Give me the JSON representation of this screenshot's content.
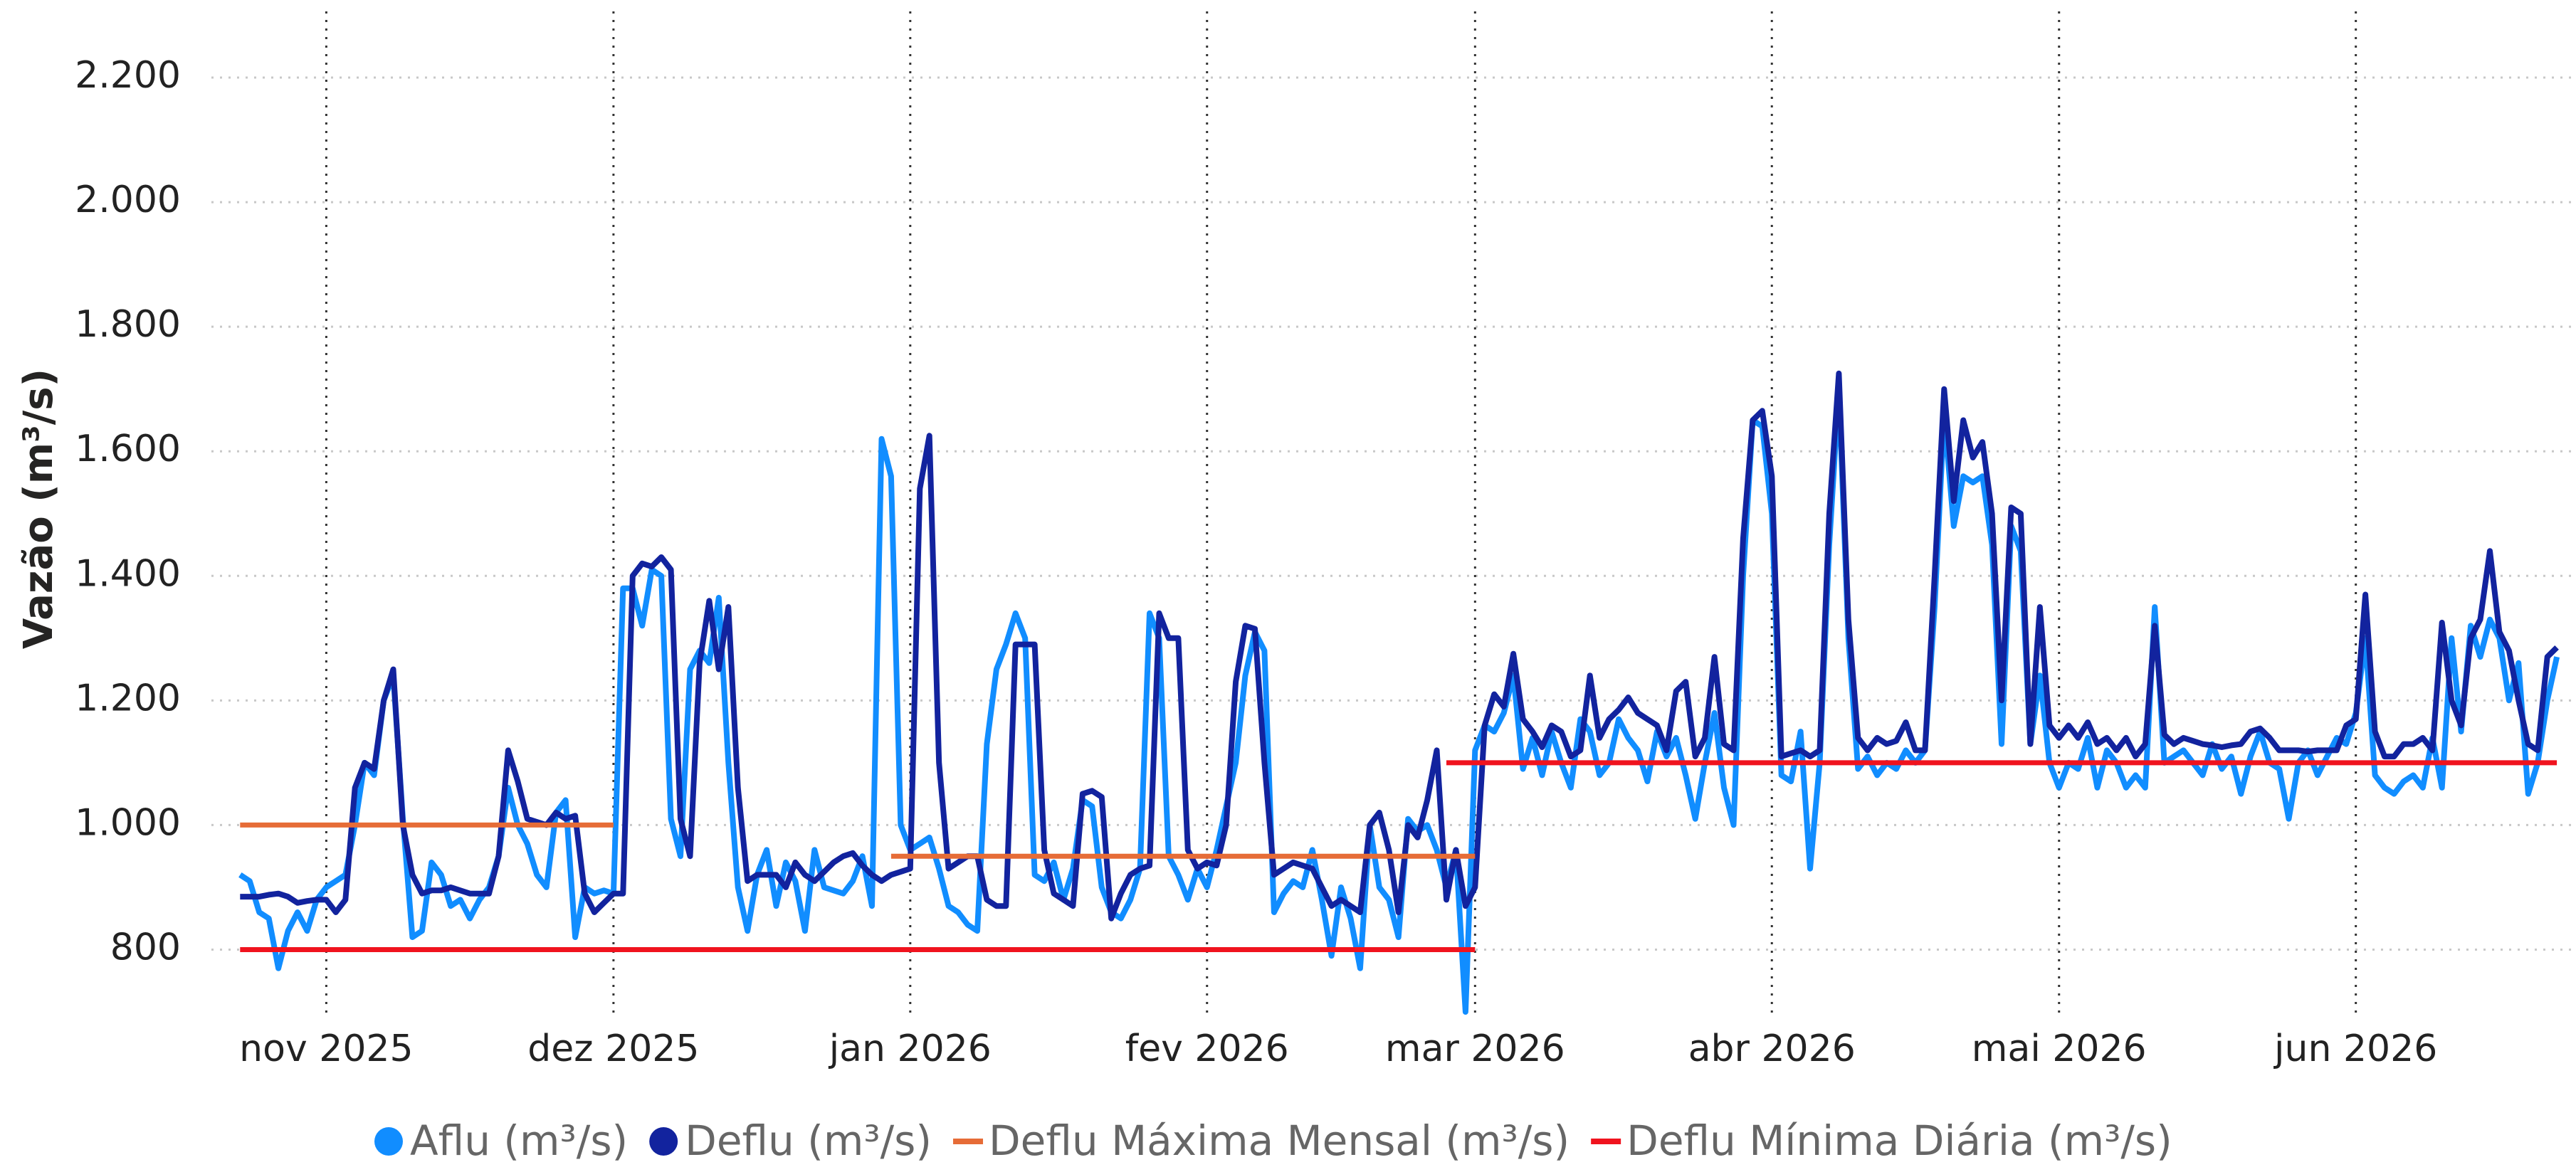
{
  "chart_data": {
    "type": "line",
    "y_label": "Vazão (m³/s)",
    "xlim": [
      -12,
      235
    ],
    "xticks": [
      {
        "value": 0,
        "label": "nov 2025"
      },
      {
        "value": 30,
        "label": "dez 2025"
      },
      {
        "value": 61,
        "label": "jan 2026"
      },
      {
        "value": 92,
        "label": "fev 2026"
      },
      {
        "value": 120,
        "label": "mar 2026"
      },
      {
        "value": 151,
        "label": "abr 2026"
      },
      {
        "value": 181,
        "label": "mai 2026"
      },
      {
        "value": 212,
        "label": "jun 2026"
      }
    ],
    "ylim": [
      700,
      2320
    ],
    "yticks": [
      800,
      {
        "value": 1000,
        "label": "1.000"
      },
      {
        "value": 1200,
        "label": "1.200"
      },
      {
        "value": 1400,
        "label": "1.400"
      },
      {
        "value": 1600,
        "label": "1.600"
      },
      {
        "value": 1800,
        "label": "1.800"
      },
      {
        "value": 2000,
        "label": "2.000"
      },
      {
        "value": 2200,
        "label": "2.200"
      }
    ],
    "grid": true,
    "legend": "bottom",
    "x": [
      -9,
      -8,
      -7,
      -6,
      -5,
      -4,
      -3,
      -2,
      -1,
      0,
      1,
      2,
      3,
      4,
      5,
      6,
      7,
      8,
      9,
      10,
      11,
      12,
      13,
      14,
      15,
      16,
      17,
      18,
      19,
      20,
      21,
      22,
      23,
      24,
      25,
      26,
      27,
      28,
      29,
      30,
      31,
      32,
      33,
      34,
      35,
      36,
      37,
      38,
      39,
      40,
      41,
      42,
      43,
      44,
      45,
      46,
      47,
      48,
      49,
      50,
      51,
      52,
      53,
      54,
      55,
      56,
      57,
      58,
      59,
      60,
      61,
      62,
      63,
      64,
      65,
      66,
      67,
      68,
      69,
      70,
      71,
      72,
      73,
      74,
      75,
      76,
      77,
      78,
      79,
      80,
      81,
      82,
      83,
      84,
      85,
      86,
      87,
      88,
      89,
      90,
      91,
      92,
      93,
      94,
      95,
      96,
      97,
      98,
      99,
      100,
      101,
      102,
      103,
      104,
      105,
      106,
      107,
      108,
      109,
      110,
      111,
      112,
      113,
      114,
      115,
      116,
      117,
      118,
      119,
      120,
      121,
      122,
      123,
      124,
      125,
      126,
      127,
      128,
      129,
      130,
      131,
      132,
      133,
      134,
      135,
      136,
      137,
      138,
      139,
      140,
      141,
      142,
      143,
      144,
      145,
      146,
      147,
      148,
      149,
      150,
      151,
      152,
      153,
      154,
      155,
      156,
      157,
      158,
      159,
      160,
      161,
      162,
      163,
      164,
      165,
      166,
      167,
      168,
      169,
      170,
      171,
      172,
      173,
      174,
      175,
      176,
      177,
      178,
      179,
      180,
      181,
      182,
      183,
      184,
      185,
      186,
      187,
      188,
      189,
      190,
      191,
      192,
      193,
      194,
      195,
      196,
      197,
      198,
      199,
      200,
      201,
      202,
      203,
      204,
      205,
      206,
      207,
      208,
      209,
      210,
      211,
      212,
      213,
      214,
      215,
      216,
      217,
      218,
      219,
      220,
      221,
      222,
      223,
      224,
      225,
      226,
      227,
      228,
      229,
      230,
      231,
      232,
      233
    ],
    "series": [
      {
        "name": "Aflu (m³/s)",
        "color": "#118dff",
        "legend_marker": "circle",
        "values": [
          920,
          910,
          860,
          850,
          770,
          830,
          860,
          830,
          880,
          900,
          910,
          920,
          1000,
          1100,
          1080,
          1200,
          1240,
          1010,
          820,
          830,
          940,
          920,
          870,
          880,
          850,
          880,
          900,
          950,
          1060,
          1000,
          970,
          920,
          900,
          1020,
          1040,
          820,
          900,
          890,
          895,
          890,
          1380,
          1380,
          1320,
          1410,
          1400,
          1010,
          950,
          1250,
          1280,
          1260,
          1365,
          1100,
          900,
          830,
          920,
          960,
          870,
          940,
          910,
          830,
          960,
          900,
          895,
          890,
          910,
          950,
          870,
          1620,
          1560,
          1000,
          960,
          970,
          980,
          930,
          870,
          860,
          840,
          830,
          1130,
          1250,
          1290,
          1340,
          1300,
          920,
          910,
          940,
          880,
          930,
          1040,
          1030,
          900,
          860,
          850,
          880,
          930,
          1340,
          1300,
          950,
          920,
          880,
          930,
          900,
          960,
          1030,
          1100,
          1240,
          1310,
          1280,
          860,
          890,
          910,
          900,
          960,
          880,
          790,
          900,
          850,
          770,
          1000,
          900,
          880,
          820,
          1010,
          990,
          1000,
          960,
          900,
          960,
          700,
          1120,
          1160,
          1150,
          1180,
          1240,
          1090,
          1140,
          1080,
          1150,
          1100,
          1060,
          1170,
          1150,
          1080,
          1100,
          1170,
          1140,
          1120,
          1070,
          1150,
          1110,
          1140,
          1080,
          1010,
          1100,
          1180,
          1060,
          1000,
          1400,
          1650,
          1640,
          1500,
          1080,
          1070,
          1150,
          930,
          1100,
          1450,
          1700,
          1300,
          1090,
          1110,
          1080,
          1100,
          1090,
          1120,
          1100,
          1120,
          1350,
          1660,
          1480,
          1560,
          1550,
          1560,
          1450,
          1130,
          1480,
          1440,
          1130,
          1240,
          1100,
          1060,
          1100,
          1090,
          1140,
          1060,
          1120,
          1100,
          1060,
          1080,
          1060,
          1350,
          1100,
          1110,
          1120,
          1100,
          1080,
          1130,
          1090,
          1110,
          1050,
          1110,
          1150,
          1100,
          1090,
          1010,
          1100,
          1120,
          1080,
          1110,
          1140,
          1130,
          1180,
          1300,
          1080,
          1060,
          1050,
          1070,
          1080,
          1060,
          1140,
          1060,
          1300,
          1150,
          1320,
          1270,
          1330,
          1300,
          1200,
          1260,
          1050,
          1100,
          1200,
          1270
        ]
      },
      {
        "name": "Deflu (m³/s)",
        "color": "#12239e",
        "legend_marker": "circle",
        "values": [
          885,
          885,
          885,
          888,
          890,
          885,
          875,
          878,
          880,
          880,
          860,
          880,
          1060,
          1100,
          1090,
          1200,
          1250,
          1000,
          920,
          890,
          895,
          895,
          900,
          895,
          890,
          890,
          890,
          950,
          1120,
          1070,
          1010,
          1005,
          1000,
          1020,
          1010,
          1015,
          890,
          860,
          875,
          890,
          890,
          1400,
          1420,
          1415,
          1430,
          1410,
          1010,
          950,
          1260,
          1360,
          1250,
          1350,
          1060,
          910,
          920,
          920,
          920,
          900,
          940,
          920,
          910,
          925,
          940,
          950,
          955,
          935,
          920,
          910,
          920,
          925,
          930,
          1540,
          1625,
          1100,
          930,
          940,
          950,
          950,
          880,
          870,
          870,
          1290,
          1290,
          1290,
          960,
          890,
          880,
          870,
          1050,
          1055,
          1045,
          850,
          890,
          920,
          930,
          935,
          1340,
          1300,
          1300,
          960,
          930,
          940,
          935,
          1000,
          1230,
          1320,
          1315,
          1100,
          920,
          930,
          940,
          935,
          930,
          900,
          870,
          880,
          870,
          860,
          1000,
          1020,
          960,
          860,
          1000,
          980,
          1040,
          1120,
          880,
          960,
          870,
          900,
          1160,
          1210,
          1190,
          1275,
          1170,
          1150,
          1125,
          1160,
          1150,
          1110,
          1120,
          1240,
          1140,
          1170,
          1185,
          1205,
          1180,
          1170,
          1160,
          1120,
          1215,
          1230,
          1110,
          1140,
          1270,
          1130,
          1120,
          1460,
          1650,
          1665,
          1560,
          1110,
          1115,
          1120,
          1110,
          1120,
          1500,
          1725,
          1330,
          1140,
          1120,
          1140,
          1130,
          1135,
          1165,
          1120,
          1120,
          1400,
          1700,
          1520,
          1650,
          1590,
          1615,
          1500,
          1200,
          1510,
          1500,
          1130,
          1350,
          1160,
          1140,
          1160,
          1140,
          1165,
          1130,
          1140,
          1120,
          1140,
          1110,
          1130,
          1320,
          1145,
          1130,
          1140,
          1135,
          1130,
          1128,
          1125,
          1128,
          1130,
          1150,
          1155,
          1140,
          1120,
          1120,
          1120,
          1118,
          1120,
          1120,
          1120,
          1160,
          1170,
          1370,
          1150,
          1110,
          1110,
          1130,
          1130,
          1140,
          1120,
          1325,
          1200,
          1160,
          1300,
          1330,
          1440,
          1310,
          1280,
          1200,
          1130,
          1120,
          1270,
          1285
        ]
      },
      {
        "name": "Deflu Máxima Mensal (m³/s)",
        "color": "#e66c37",
        "legend_marker": "line",
        "x": [
          -9,
          30,
          null,
          59,
          120
        ],
        "values": [
          1000,
          1000,
          null,
          950,
          950
        ]
      },
      {
        "name": "Deflu Mínima Diária (m³/s)",
        "color": "#f0131e",
        "legend_marker": "line",
        "x": [
          -9,
          120,
          null,
          117,
          233
        ],
        "values": [
          800,
          800,
          null,
          1100,
          1100
        ]
      }
    ]
  }
}
